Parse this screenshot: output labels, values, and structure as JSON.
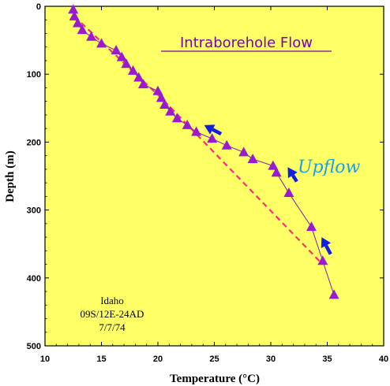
{
  "chart_data": {
    "type": "scatter",
    "title": "Intraborehole Flow",
    "xlabel": "Temperature (°C)",
    "ylabel": "Depth (m)",
    "xlim": [
      10,
      40
    ],
    "ylim": [
      0,
      500
    ],
    "y_inverted": true,
    "x_ticks": [
      10,
      15,
      20,
      25,
      30,
      35,
      40
    ],
    "y_ticks": [
      0,
      100,
      200,
      300,
      400,
      500
    ],
    "grid": false,
    "background_color": "#ffff66",
    "series": [
      {
        "marker": "triangle",
        "color": "#9a1ad0",
        "line_color": "#7a1ab0",
        "points": [
          {
            "x": 12.5,
            "y": 5
          },
          {
            "x": 12.6,
            "y": 15
          },
          {
            "x": 12.9,
            "y": 25
          },
          {
            "x": 13.3,
            "y": 35
          },
          {
            "x": 14.1,
            "y": 45
          },
          {
            "x": 15.0,
            "y": 55
          },
          {
            "x": 16.3,
            "y": 65
          },
          {
            "x": 16.8,
            "y": 75
          },
          {
            "x": 17.2,
            "y": 85
          },
          {
            "x": 17.8,
            "y": 95
          },
          {
            "x": 18.3,
            "y": 105
          },
          {
            "x": 18.7,
            "y": 115
          },
          {
            "x": 20.0,
            "y": 125
          },
          {
            "x": 20.3,
            "y": 135
          },
          {
            "x": 20.6,
            "y": 145
          },
          {
            "x": 21.1,
            "y": 155
          },
          {
            "x": 21.7,
            "y": 165
          },
          {
            "x": 22.6,
            "y": 175
          },
          {
            "x": 23.4,
            "y": 185
          },
          {
            "x": 24.8,
            "y": 195
          },
          {
            "x": 26.1,
            "y": 205
          },
          {
            "x": 27.6,
            "y": 215
          },
          {
            "x": 28.4,
            "y": 225
          },
          {
            "x": 30.2,
            "y": 235
          },
          {
            "x": 30.5,
            "y": 245
          },
          {
            "x": 31.6,
            "y": 275
          },
          {
            "x": 33.6,
            "y": 325
          },
          {
            "x": 34.6,
            "y": 375
          },
          {
            "x": 35.6,
            "y": 425
          }
        ]
      }
    ],
    "reference_line": {
      "style": "dashed",
      "color": "#ff2a7a",
      "points": [
        {
          "x": 12.6,
          "y": 15
        },
        {
          "x": 20.3,
          "y": 135
        },
        {
          "x": 34.3,
          "y": 375
        }
      ]
    },
    "arrows": [
      {
        "from": {
          "x": 25.6,
          "y": 188
        },
        "to": {
          "x": 24.1,
          "y": 175
        },
        "color": "#1020e0"
      },
      {
        "from": {
          "x": 32.3,
          "y": 258
        },
        "to": {
          "x": 31.5,
          "y": 237
        },
        "color": "#1020e0"
      },
      {
        "from": {
          "x": 35.3,
          "y": 365
        },
        "to": {
          "x": 34.5,
          "y": 340
        },
        "color": "#1020e0"
      }
    ],
    "annotations": {
      "upflow": "Upflow",
      "location": [
        "Idaho",
        "09S/12E-24AD",
        "7/7/74"
      ]
    }
  }
}
